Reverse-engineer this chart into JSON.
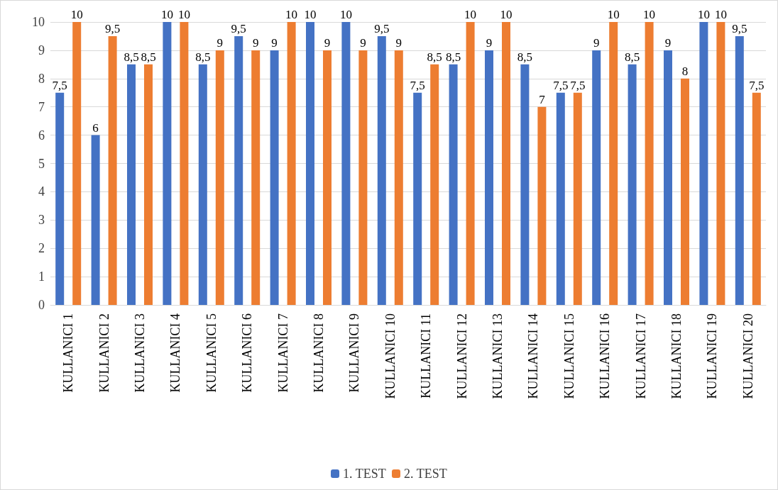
{
  "chart_data": {
    "type": "bar",
    "categories": [
      "KULLANICI 1",
      "KULLANICI 2",
      "KULLANICI 3",
      "KULLANICI 4",
      "KULLANICI 5",
      "KULLANICI 6",
      "KULLANICI 7",
      "KULLANICI 8",
      "KULLANICI 9",
      "KULLANICI 10",
      "KULLANICI 11",
      "KULLANICI 12",
      "KULLANICI 13",
      "KULLANICI 14",
      "KULLANICI 15",
      "KULLANICI 16",
      "KULLANICI 17",
      "KULLANICI 18",
      "KULLANICI 19",
      "KULLANICI 20"
    ],
    "series": [
      {
        "name": "1. TEST",
        "color": "#4472c4",
        "values": [
          7.5,
          6,
          8.5,
          10,
          8.5,
          9.5,
          9,
          10,
          10,
          9.5,
          7.5,
          8.5,
          9,
          8.5,
          7.5,
          9,
          8.5,
          9,
          10,
          9.5
        ],
        "value_labels": [
          "7,5",
          "6",
          "8,5",
          "10",
          "8,5",
          "9,5",
          "9",
          "10",
          "10",
          "9,5",
          "7,5",
          "8,5",
          "9",
          "8,5",
          "7,5",
          "9",
          "8,5",
          "9",
          "10",
          "9,5"
        ]
      },
      {
        "name": "2. TEST",
        "color": "#ed7d31",
        "values": [
          10,
          9.5,
          8.5,
          10,
          9,
          9,
          10,
          9,
          9,
          9,
          8.5,
          10,
          10,
          7,
          7.5,
          10,
          10,
          8,
          10,
          7.5
        ],
        "value_labels": [
          "10",
          "9,5",
          "8,5",
          "10",
          "9",
          "9",
          "10",
          "9",
          "9",
          "9",
          "8,5",
          "10",
          "10",
          "7",
          "7,5",
          "10",
          "10",
          "8",
          "10",
          "7,5"
        ]
      }
    ],
    "ylim": [
      0,
      10
    ],
    "yticks": [
      0,
      1,
      2,
      3,
      4,
      5,
      6,
      7,
      8,
      9,
      10
    ],
    "grid": "y",
    "legend": "bottom"
  }
}
